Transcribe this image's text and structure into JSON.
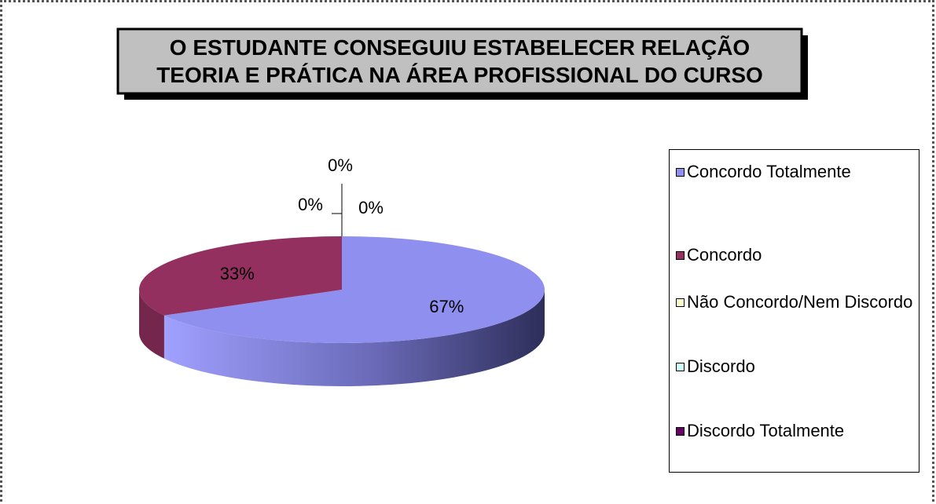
{
  "chart_data": {
    "type": "pie",
    "title": [
      "O ESTUDANTE CONSEGUIU ESTABELECER RELAÇÃO",
      "TEORIA E PRÁTICA NA ÁREA PROFISSIONAL DO CURSO"
    ],
    "categories": [
      "Concordo Totalmente",
      "Concordo",
      "Não Concordo/Nem Discordo",
      "Discordo",
      "Discordo Totalmente"
    ],
    "values": [
      67,
      33,
      0,
      0,
      0
    ],
    "value_labels": [
      "67%",
      "33%",
      "0%",
      "0%",
      "0%"
    ],
    "colors": [
      "#8f8fef",
      "#93305f",
      "#ffffcc",
      "#ccffff",
      "#660066"
    ],
    "legend": "right"
  }
}
